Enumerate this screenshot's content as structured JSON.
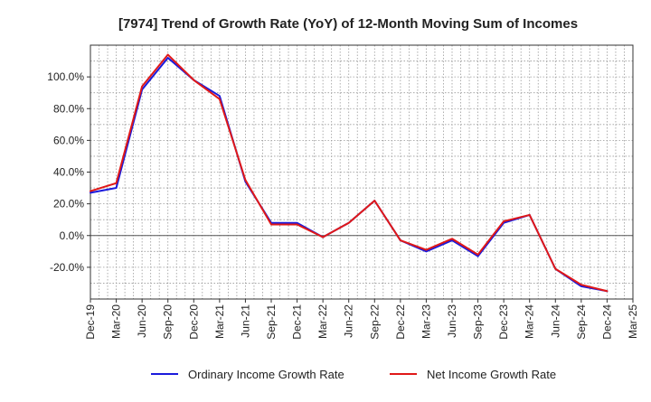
{
  "chart_data": {
    "type": "line",
    "title": "[7974]  Trend of Growth Rate (YoY) of 12-Month Moving Sum of Incomes",
    "xlabel": "",
    "ylabel": "",
    "x": [
      "Dec-19",
      "Mar-20",
      "Jun-20",
      "Sep-20",
      "Dec-20",
      "Mar-21",
      "Jun-21",
      "Sep-21",
      "Dec-21",
      "Mar-22",
      "Jun-22",
      "Sep-22",
      "Dec-22",
      "Mar-23",
      "Jun-23",
      "Sep-23",
      "Dec-23",
      "Mar-24",
      "Jun-24",
      "Sep-24",
      "Dec-24",
      "Mar-25"
    ],
    "ylim": [
      -40,
      120
    ],
    "yticks": [
      -20,
      0,
      20,
      40,
      60,
      80,
      100
    ],
    "ytick_labels": [
      "-20.0%",
      "0.0%",
      "20.0%",
      "40.0%",
      "60.0%",
      "80.0%",
      "100.0%"
    ],
    "grid": true,
    "legend_position": "bottom",
    "series": [
      {
        "name": "Ordinary Income Growth Rate",
        "color": "#1a1adc",
        "values": [
          27,
          30,
          92,
          112,
          98,
          88,
          34,
          8,
          8,
          -1,
          8,
          22,
          -3,
          -10,
          -3,
          -13,
          8,
          13,
          -21,
          -32,
          -35,
          null
        ]
      },
      {
        "name": "Net Income Growth Rate",
        "color": "#e01818",
        "values": [
          28,
          33,
          94,
          114,
          98,
          86,
          35,
          7,
          7,
          -1,
          8,
          22,
          -3,
          -9,
          -2,
          -12,
          9,
          13,
          -21,
          -31,
          -35,
          null
        ]
      }
    ]
  }
}
